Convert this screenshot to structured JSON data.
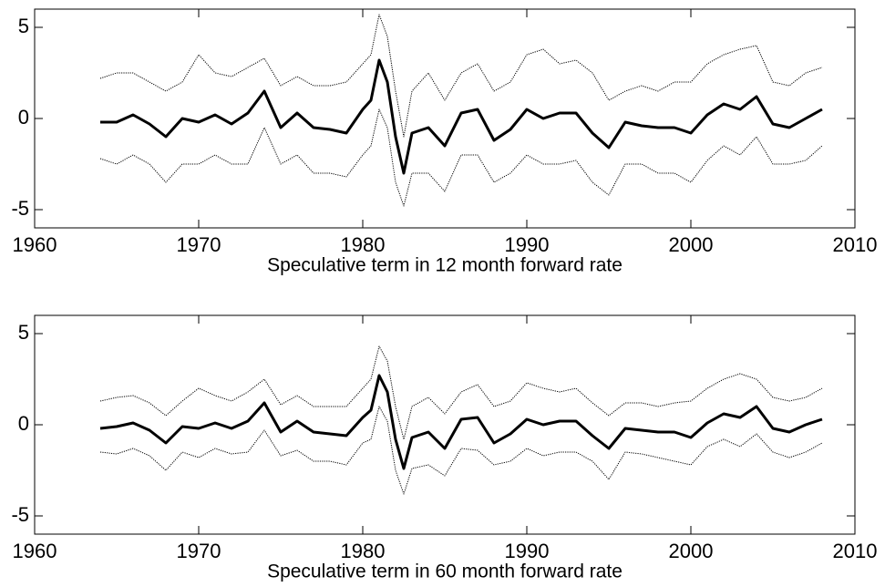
{
  "chart_data": [
    {
      "type": "line",
      "xlabel": "Speculative term in 12 month forward rate",
      "xlim": [
        1960,
        2010
      ],
      "xticks": [
        1960,
        1970,
        1980,
        1990,
        2000,
        2010
      ],
      "ylim": [
        -6,
        6
      ],
      "yticks": [
        -5,
        0,
        5
      ],
      "x": [
        1964,
        1965,
        1966,
        1967,
        1968,
        1969,
        1970,
        1971,
        1972,
        1973,
        1974,
        1975,
        1976,
        1977,
        1978,
        1979,
        1980,
        1980.5,
        1981,
        1981.5,
        1982,
        1982.5,
        1983,
        1984,
        1985,
        1986,
        1987,
        1988,
        1989,
        1990,
        1991,
        1992,
        1993,
        1994,
        1995,
        1996,
        1997,
        1998,
        1999,
        2000,
        2001,
        2002,
        2003,
        2004,
        2005,
        2006,
        2007,
        2008
      ],
      "series": [
        {
          "color": "#000000",
          "style": "dotted",
          "width": 1,
          "values": [
            2.2,
            2.5,
            2.5,
            2.0,
            1.5,
            2.0,
            3.5,
            2.5,
            2.3,
            2.8,
            3.3,
            1.8,
            2.3,
            1.8,
            1.8,
            2.0,
            3.0,
            3.5,
            5.7,
            4.5,
            1.5,
            -1.0,
            1.5,
            2.5,
            1.0,
            2.5,
            3.0,
            1.5,
            2.0,
            3.5,
            3.8,
            3.0,
            3.2,
            2.5,
            1.0,
            1.5,
            1.8,
            1.5,
            2.0,
            2.0,
            3.0,
            3.5,
            3.8,
            4.0,
            2.0,
            1.8,
            2.5,
            2.8
          ]
        },
        {
          "color": "#000000",
          "style": "dotted",
          "width": 1,
          "values": [
            -2.2,
            -2.5,
            -2.0,
            -2.5,
            -3.5,
            -2.5,
            -2.5,
            -2.0,
            -2.5,
            -2.5,
            -0.5,
            -2.5,
            -2.0,
            -3.0,
            -3.0,
            -3.2,
            -2.0,
            -1.5,
            0.5,
            -0.5,
            -3.5,
            -4.8,
            -3.0,
            -3.0,
            -4.0,
            -2.0,
            -2.0,
            -3.5,
            -3.0,
            -2.0,
            -2.5,
            -2.5,
            -2.3,
            -3.5,
            -4.2,
            -2.5,
            -2.5,
            -3.0,
            -3.0,
            -3.5,
            -2.3,
            -1.5,
            -2.0,
            -1.0,
            -2.5,
            -2.5,
            -2.3,
            -1.5
          ]
        },
        {
          "color": "#000000",
          "style": "solid",
          "width": 3,
          "values": [
            -0.2,
            -0.2,
            0.2,
            -0.3,
            -1.0,
            0,
            -0.2,
            0.2,
            -0.3,
            0.3,
            1.5,
            -0.5,
            0.3,
            -0.5,
            -0.6,
            -0.8,
            0.5,
            1.0,
            3.2,
            2.0,
            -1.0,
            -3.0,
            -0.8,
            -0.5,
            -1.5,
            0.3,
            0.5,
            -1.2,
            -0.6,
            0.5,
            0,
            0.3,
            0.3,
            -0.8,
            -1.6,
            -0.2,
            -0.4,
            -0.5,
            -0.5,
            -0.8,
            0.2,
            0.8,
            0.5,
            1.2,
            -0.3,
            -0.5,
            0,
            0.5
          ]
        }
      ]
    },
    {
      "type": "line",
      "xlabel": "Speculative term in 60 month forward rate",
      "xlim": [
        1960,
        2010
      ],
      "xticks": [
        1960,
        1970,
        1980,
        1990,
        2000,
        2010
      ],
      "ylim": [
        -6,
        6
      ],
      "yticks": [
        -5,
        0,
        5
      ],
      "x": [
        1964,
        1965,
        1966,
        1967,
        1968,
        1969,
        1970,
        1971,
        1972,
        1973,
        1974,
        1975,
        1976,
        1977,
        1978,
        1979,
        1980,
        1980.5,
        1981,
        1981.5,
        1982,
        1982.5,
        1983,
        1984,
        1985,
        1986,
        1987,
        1988,
        1989,
        1990,
        1991,
        1992,
        1993,
        1994,
        1995,
        1996,
        1997,
        1998,
        1999,
        2000,
        2001,
        2002,
        2003,
        2004,
        2005,
        2006,
        2007,
        2008
      ],
      "series": [
        {
          "color": "#000000",
          "style": "dotted",
          "width": 1,
          "values": [
            1.3,
            1.5,
            1.6,
            1.2,
            0.5,
            1.3,
            2.0,
            1.6,
            1.3,
            1.8,
            2.5,
            1.1,
            1.6,
            1.0,
            1.0,
            1.0,
            2.0,
            2.5,
            4.3,
            3.5,
            1.0,
            -0.8,
            1.0,
            1.5,
            0.6,
            1.8,
            2.2,
            1.0,
            1.3,
            2.3,
            2.0,
            1.8,
            2.0,
            1.2,
            0.5,
            1.2,
            1.2,
            1.0,
            1.2,
            1.3,
            2.0,
            2.5,
            2.8,
            2.5,
            1.5,
            1.3,
            1.5,
            2.0
          ]
        },
        {
          "color": "#000000",
          "style": "dotted",
          "width": 1,
          "values": [
            -1.5,
            -1.6,
            -1.3,
            -1.7,
            -2.5,
            -1.5,
            -1.8,
            -1.3,
            -1.6,
            -1.5,
            -0.3,
            -1.7,
            -1.4,
            -2.0,
            -2.0,
            -2.2,
            -1.0,
            -0.8,
            1.0,
            0.2,
            -2.5,
            -3.8,
            -2.4,
            -2.2,
            -2.8,
            -1.3,
            -1.4,
            -2.2,
            -2.0,
            -1.3,
            -1.7,
            -1.5,
            -1.5,
            -2.0,
            -3.0,
            -1.5,
            -1.6,
            -1.8,
            -2.0,
            -2.2,
            -1.2,
            -0.8,
            -1.2,
            -0.5,
            -1.5,
            -1.8,
            -1.5,
            -1.0
          ]
        },
        {
          "color": "#000000",
          "style": "solid",
          "width": 3,
          "values": [
            -0.2,
            -0.1,
            0.1,
            -0.3,
            -1.0,
            -0.1,
            -0.2,
            0.1,
            -0.2,
            0.2,
            1.2,
            -0.4,
            0.2,
            -0.4,
            -0.5,
            -0.6,
            0.4,
            0.8,
            2.7,
            1.8,
            -0.8,
            -2.4,
            -0.7,
            -0.4,
            -1.3,
            0.3,
            0.4,
            -1.0,
            -0.5,
            0.3,
            0,
            0.2,
            0.2,
            -0.6,
            -1.3,
            -0.2,
            -0.3,
            -0.4,
            -0.4,
            -0.7,
            0.1,
            0.6,
            0.4,
            1.0,
            -0.2,
            -0.4,
            0,
            0.3
          ]
        }
      ]
    }
  ]
}
